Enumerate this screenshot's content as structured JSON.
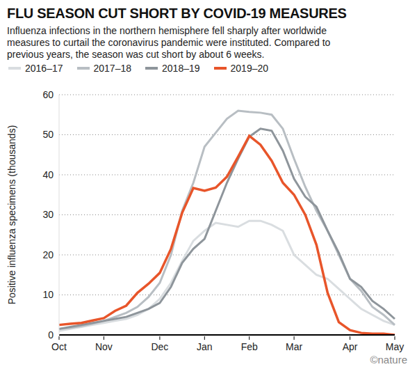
{
  "chart_data": {
    "type": "line",
    "title": "FLU SEASON CUT SHORT BY COVID-19 MEASURES",
    "subtitle": "Influenza infections in the northern hemisphere fell sharply after worldwide measures to curtail the coronavirus pandemic were instituted. Compared to previous years, the season was cut short by about 6 weeks.",
    "y_label": "Positive influenza specimens (thousands)",
    "credit": "©nature",
    "categories": [
      "Oct",
      null,
      null,
      null,
      "Nov",
      null,
      null,
      null,
      null,
      "Dec",
      null,
      null,
      null,
      "Jan",
      null,
      null,
      null,
      "Feb",
      null,
      null,
      null,
      "Mar",
      null,
      null,
      null,
      null,
      "Apr",
      null,
      null,
      null,
      "May"
    ],
    "series": [
      {
        "name": "2016–17",
        "color": "#d9dde0",
        "values": [
          1,
          1.5,
          2,
          2.5,
          3,
          3.5,
          4,
          5,
          6.5,
          9,
          13,
          18.5,
          23.5,
          26,
          28,
          27.5,
          27,
          28.5,
          28.5,
          27.5,
          26,
          20,
          17.5,
          15,
          14,
          11.5,
          9,
          6.5,
          5,
          3.5,
          2.5
        ]
      },
      {
        "name": "2017–18",
        "color": "#b8bec3",
        "values": [
          1.5,
          1.8,
          2.2,
          2.8,
          3.5,
          4.5,
          5.5,
          7,
          9.5,
          13,
          20,
          31,
          38,
          47,
          50.5,
          54,
          56,
          55.7,
          55.5,
          55,
          51.5,
          44,
          37,
          31,
          26,
          20,
          14,
          11,
          7,
          5,
          2.5
        ]
      },
      {
        "name": "2018–19",
        "color": "#8e959b",
        "values": [
          1.5,
          2,
          2.5,
          3,
          3.5,
          4,
          4.5,
          5.5,
          6.5,
          8,
          12,
          18,
          21.5,
          24,
          31,
          38,
          44,
          49.5,
          51.5,
          51,
          46,
          39,
          34.5,
          32,
          26,
          20.5,
          14,
          12,
          8.5,
          6.5,
          4
        ]
      },
      {
        "name": "2019–20",
        "color": "#e8552a",
        "values": [
          2.5,
          2.8,
          3,
          3.6,
          4.2,
          6,
          7.3,
          10.5,
          12.8,
          15.5,
          21.5,
          30.5,
          36.7,
          36,
          36.8,
          39.5,
          44.5,
          49.7,
          47.5,
          43.5,
          38,
          35,
          30,
          22.5,
          10.5,
          3.2,
          1.2,
          0.5,
          0.3,
          0.3,
          0
        ]
      }
    ],
    "ylim": [
      0,
      60
    ],
    "yticks": [
      0,
      10,
      20,
      30,
      40,
      50,
      60
    ],
    "grid": true,
    "legend": "top"
  }
}
